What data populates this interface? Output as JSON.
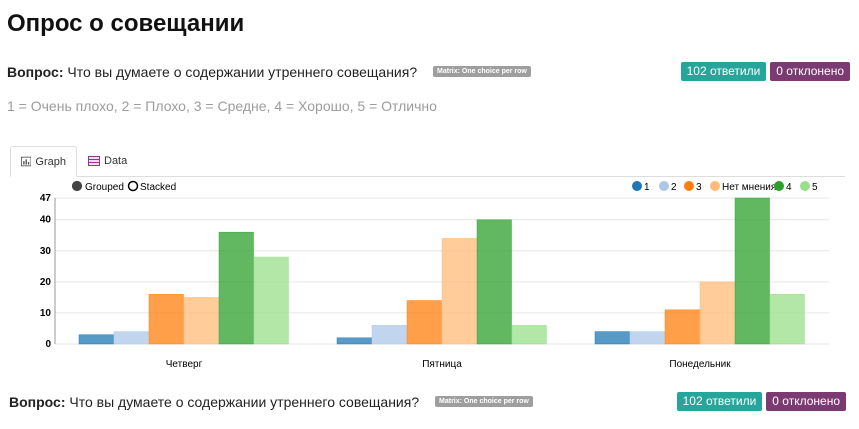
{
  "page": {
    "title": "Опрос о совещании"
  },
  "question": {
    "label": "Вопрос:",
    "text": "Что вы думаете о содержании утреннего совещания?",
    "type_badge": "Matrix: One choice per row",
    "answered_label": "102 ответили",
    "declined_label": "0 отклонено"
  },
  "scale_legend": "1 = Очень плохо, 2 = Плохо, 3 = Средне, 4 = Хорошо, 5 = Отлично",
  "tabs": [
    {
      "label": "Graph",
      "icon": "bar-chart-icon",
      "active": true
    },
    {
      "label": "Data",
      "icon": "table-icon",
      "active": false
    }
  ],
  "chart_controls": {
    "grouped_label": "Grouped",
    "stacked_label": "Stacked",
    "selected": "grouped"
  },
  "colors": {
    "accent_answered": "#26a69a",
    "accent_declined": "#7b3a72"
  },
  "chart_data": {
    "type": "bar",
    "categories": [
      "Четверг",
      "Пятница",
      "Понедельник"
    ],
    "series": [
      {
        "name": "1",
        "color": "#1f77b4",
        "values": [
          3,
          2,
          4
        ]
      },
      {
        "name": "2",
        "color": "#aec7e8",
        "values": [
          4,
          6,
          4
        ]
      },
      {
        "name": "3",
        "color": "#ff7f0e",
        "values": [
          16,
          14,
          11
        ]
      },
      {
        "name": "Нет мнения",
        "color": "#ffbb78",
        "values": [
          15,
          34,
          20
        ]
      },
      {
        "name": "4",
        "color": "#2ca02c",
        "values": [
          36,
          40,
          47
        ]
      },
      {
        "name": "5",
        "color": "#98df8a",
        "values": [
          28,
          6,
          16
        ]
      }
    ],
    "ylim": [
      0,
      47
    ],
    "yticks": [
      "0",
      "10",
      "20",
      "30",
      "40",
      "47"
    ],
    "grid": true,
    "legend_position": "top-right"
  },
  "question_repeat": {
    "label": "Вопрос:",
    "text": "Что вы думаете о содержании утреннего совещания?",
    "type_badge": "Matrix: One choice per row",
    "answered_label": "102 ответили",
    "declined_label": "0 отклонено"
  }
}
